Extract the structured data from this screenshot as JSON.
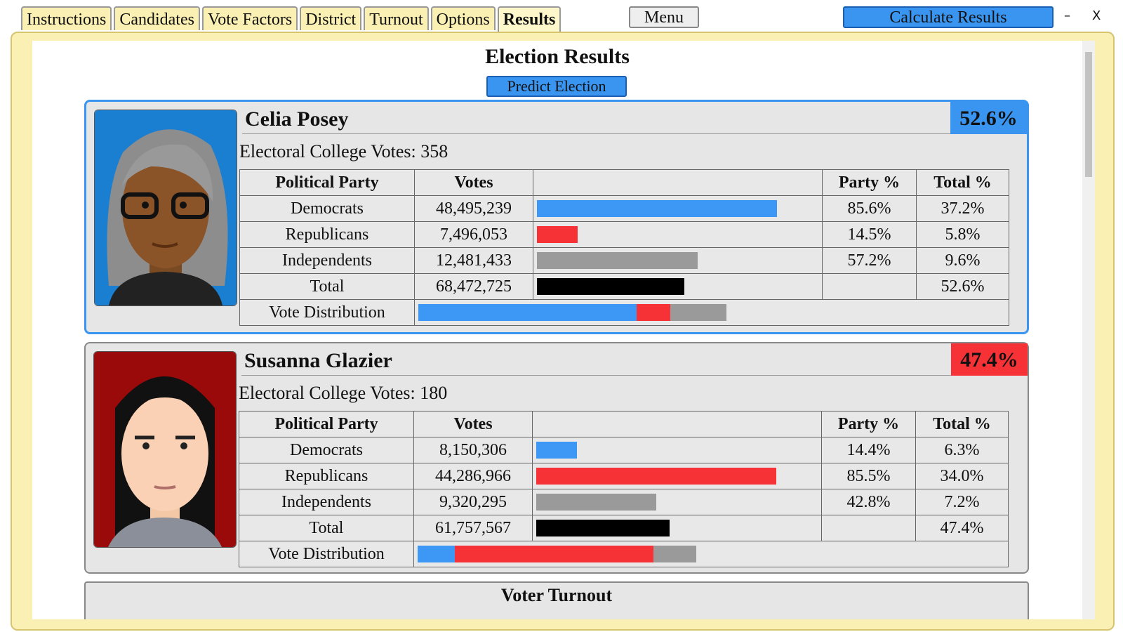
{
  "tabs": [
    "Instructions",
    "Candidates",
    "Vote Factors",
    "District",
    "Turnout",
    "Options",
    "Results"
  ],
  "active_tab": 6,
  "menu_button": "Menu",
  "calculate_button": "Calculate Results",
  "minimize": "–",
  "close": "X",
  "results": {
    "title": "Election Results",
    "predict_button": "Predict Election",
    "table_header": {
      "party": "Political Party",
      "votes": "Votes",
      "party_pct": "Party %",
      "total_pct": "Total %"
    },
    "distribution_label": "Vote Distribution",
    "electoral_label": "Electoral College Votes:",
    "candidates": [
      {
        "name": "Celia Posey",
        "color": "#3a95f0",
        "electoral_votes": 358,
        "rows": [
          {
            "party": "Democrats",
            "color": "#3d97f5",
            "votes": "48,495,239",
            "party_pct": {
              "value": 85.6,
              "label": "85.6%"
            },
            "total_pct": {
              "value": 37.2,
              "label": "37.2%"
            }
          },
          {
            "party": "Republicans",
            "color": "#f63236",
            "votes": "7,496,053",
            "party_pct": {
              "value": 14.5,
              "label": "14.5%"
            },
            "total_pct": {
              "value": 5.8,
              "label": "5.8%"
            }
          },
          {
            "party": "Independents",
            "color": "#9a9a9a",
            "votes": "12,481,433",
            "party_pct": {
              "value": 57.2,
              "label": "57.2%"
            },
            "total_pct": {
              "value": 9.6,
              "label": "9.6%"
            }
          },
          {
            "party": "Total",
            "color": "#000000",
            "votes": "68,472,725",
            "total_pct": {
              "value": 52.6,
              "label": "52.6%"
            }
          }
        ]
      },
      {
        "name": "Susanna Glazier",
        "color": "#f63236",
        "electoral_votes": 180,
        "rows": [
          {
            "party": "Democrats",
            "color": "#3d97f5",
            "votes": "8,150,306",
            "party_pct": {
              "value": 14.4,
              "label": "14.4%"
            },
            "total_pct": {
              "value": 6.3,
              "label": "6.3%"
            }
          },
          {
            "party": "Republicans",
            "color": "#f63236",
            "votes": "44,286,966",
            "party_pct": {
              "value": 85.5,
              "label": "85.5%"
            },
            "total_pct": {
              "value": 34.0,
              "label": "34.0%"
            }
          },
          {
            "party": "Independents",
            "color": "#9a9a9a",
            "votes": "9,320,295",
            "party_pct": {
              "value": 42.8,
              "label": "42.8%"
            },
            "total_pct": {
              "value": 7.2,
              "label": "7.2%"
            }
          },
          {
            "party": "Total",
            "color": "#000000",
            "votes": "61,757,567",
            "total_pct": {
              "value": 47.4,
              "label": "47.4%"
            }
          }
        ]
      }
    ],
    "turnout_title": "Voter Turnout"
  }
}
